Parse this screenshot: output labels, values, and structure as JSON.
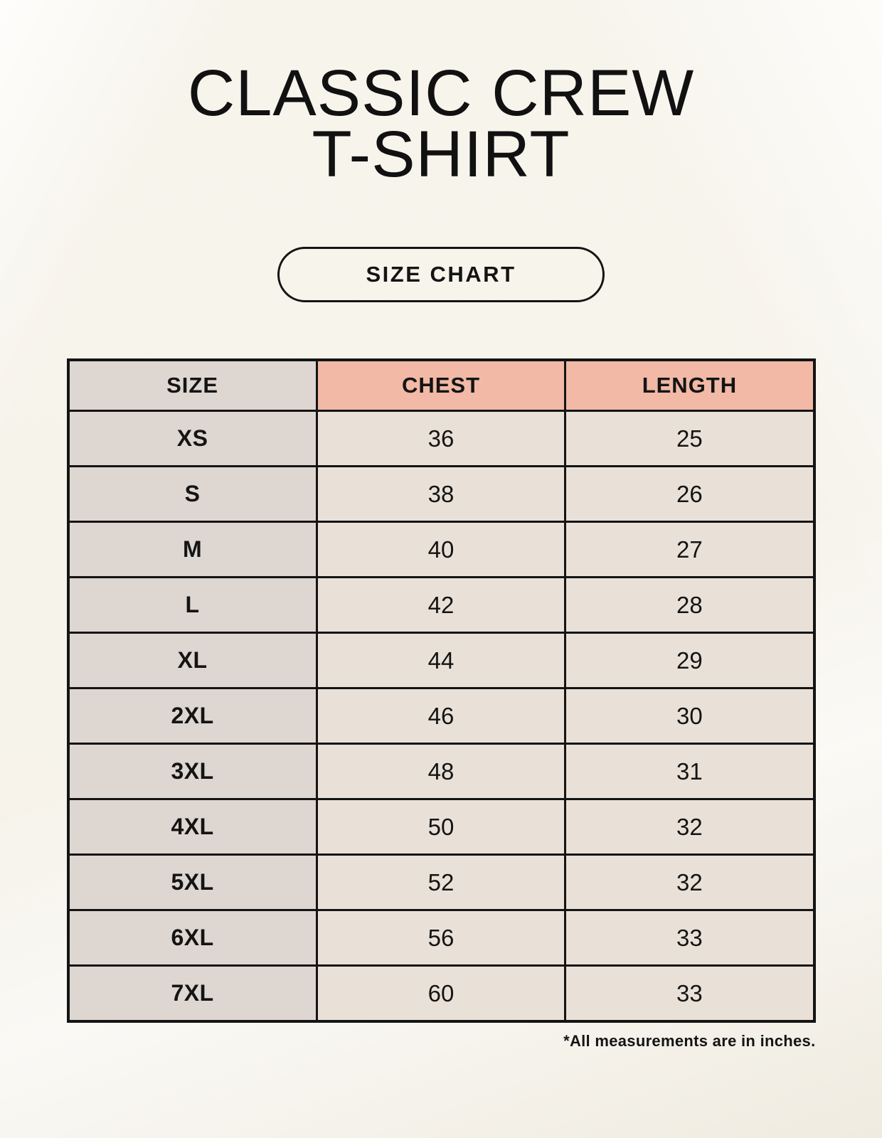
{
  "header": {
    "title_lines": [
      "CLASSIC CREW",
      "T-SHIRT"
    ],
    "size_chart_button": "SIZE CHART"
  },
  "chart_data": {
    "type": "table",
    "title": "CLASSIC CREW T-SHIRT",
    "columns": [
      "SIZE",
      "CHEST",
      "LENGTH"
    ],
    "rows": [
      [
        "XS",
        "36",
        "25"
      ],
      [
        "S",
        "38",
        "26"
      ],
      [
        "M",
        "40",
        "27"
      ],
      [
        "L",
        "42",
        "28"
      ],
      [
        "XL",
        "44",
        "29"
      ],
      [
        "2XL",
        "46",
        "30"
      ],
      [
        "3XL",
        "48",
        "31"
      ],
      [
        "4XL",
        "50",
        "32"
      ],
      [
        "5XL",
        "52",
        "32"
      ],
      [
        "6XL",
        "56",
        "33"
      ],
      [
        "7XL",
        "60",
        "33"
      ]
    ],
    "units_note": "*All measurements are in inches."
  },
  "colors": {
    "text": "#141414",
    "table_border": "#141414",
    "page_background": "#f5f2e9",
    "size_column_bg": "#ded6d1",
    "accent_header_bg": "#f1b9a6",
    "value_cell_bg": "#e9e1d7"
  }
}
